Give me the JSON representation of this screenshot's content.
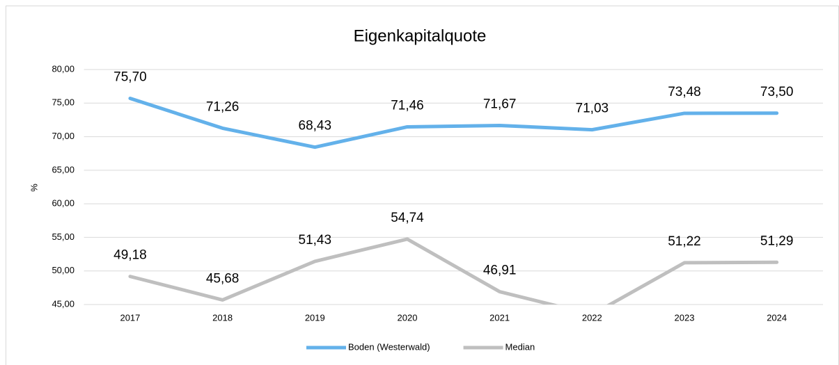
{
  "chart_data": {
    "type": "line",
    "title": "Eigenkapitalquote",
    "y_label": "%",
    "categories": [
      "2017",
      "2018",
      "2019",
      "2020",
      "2021",
      "2022",
      "2023",
      "2024"
    ],
    "series": [
      {
        "name": "Boden (Westerwald)",
        "color": "#63b1ea",
        "values": [
          75.7,
          71.26,
          68.43,
          71.46,
          71.67,
          71.03,
          73.48,
          73.5
        ],
        "value_labels": [
          "75,70",
          "71,26",
          "68,43",
          "71,46",
          "71,67",
          "71,03",
          "73,48",
          "73,50"
        ]
      },
      {
        "name": "Median",
        "color": "#bfbfbf",
        "values": [
          49.18,
          45.68,
          51.43,
          54.74,
          46.91,
          43.5,
          51.22,
          51.29
        ],
        "value_labels": [
          "49,18",
          "45,68",
          "51,43",
          "54,74",
          "46,91",
          null,
          "51,22",
          "51,29"
        ]
      }
    ],
    "ylim": [
      45,
      80
    ],
    "yticks": [
      {
        "value": 45,
        "label": "45,00"
      },
      {
        "value": 50,
        "label": "50,00"
      },
      {
        "value": 55,
        "label": "55,00"
      },
      {
        "value": 60,
        "label": "60,00"
      },
      {
        "value": 65,
        "label": "65,00"
      },
      {
        "value": 70,
        "label": "70,00"
      },
      {
        "value": 75,
        "label": "75,00"
      },
      {
        "value": 80,
        "label": "80,00"
      }
    ],
    "grid": true,
    "legend": "bottom"
  }
}
